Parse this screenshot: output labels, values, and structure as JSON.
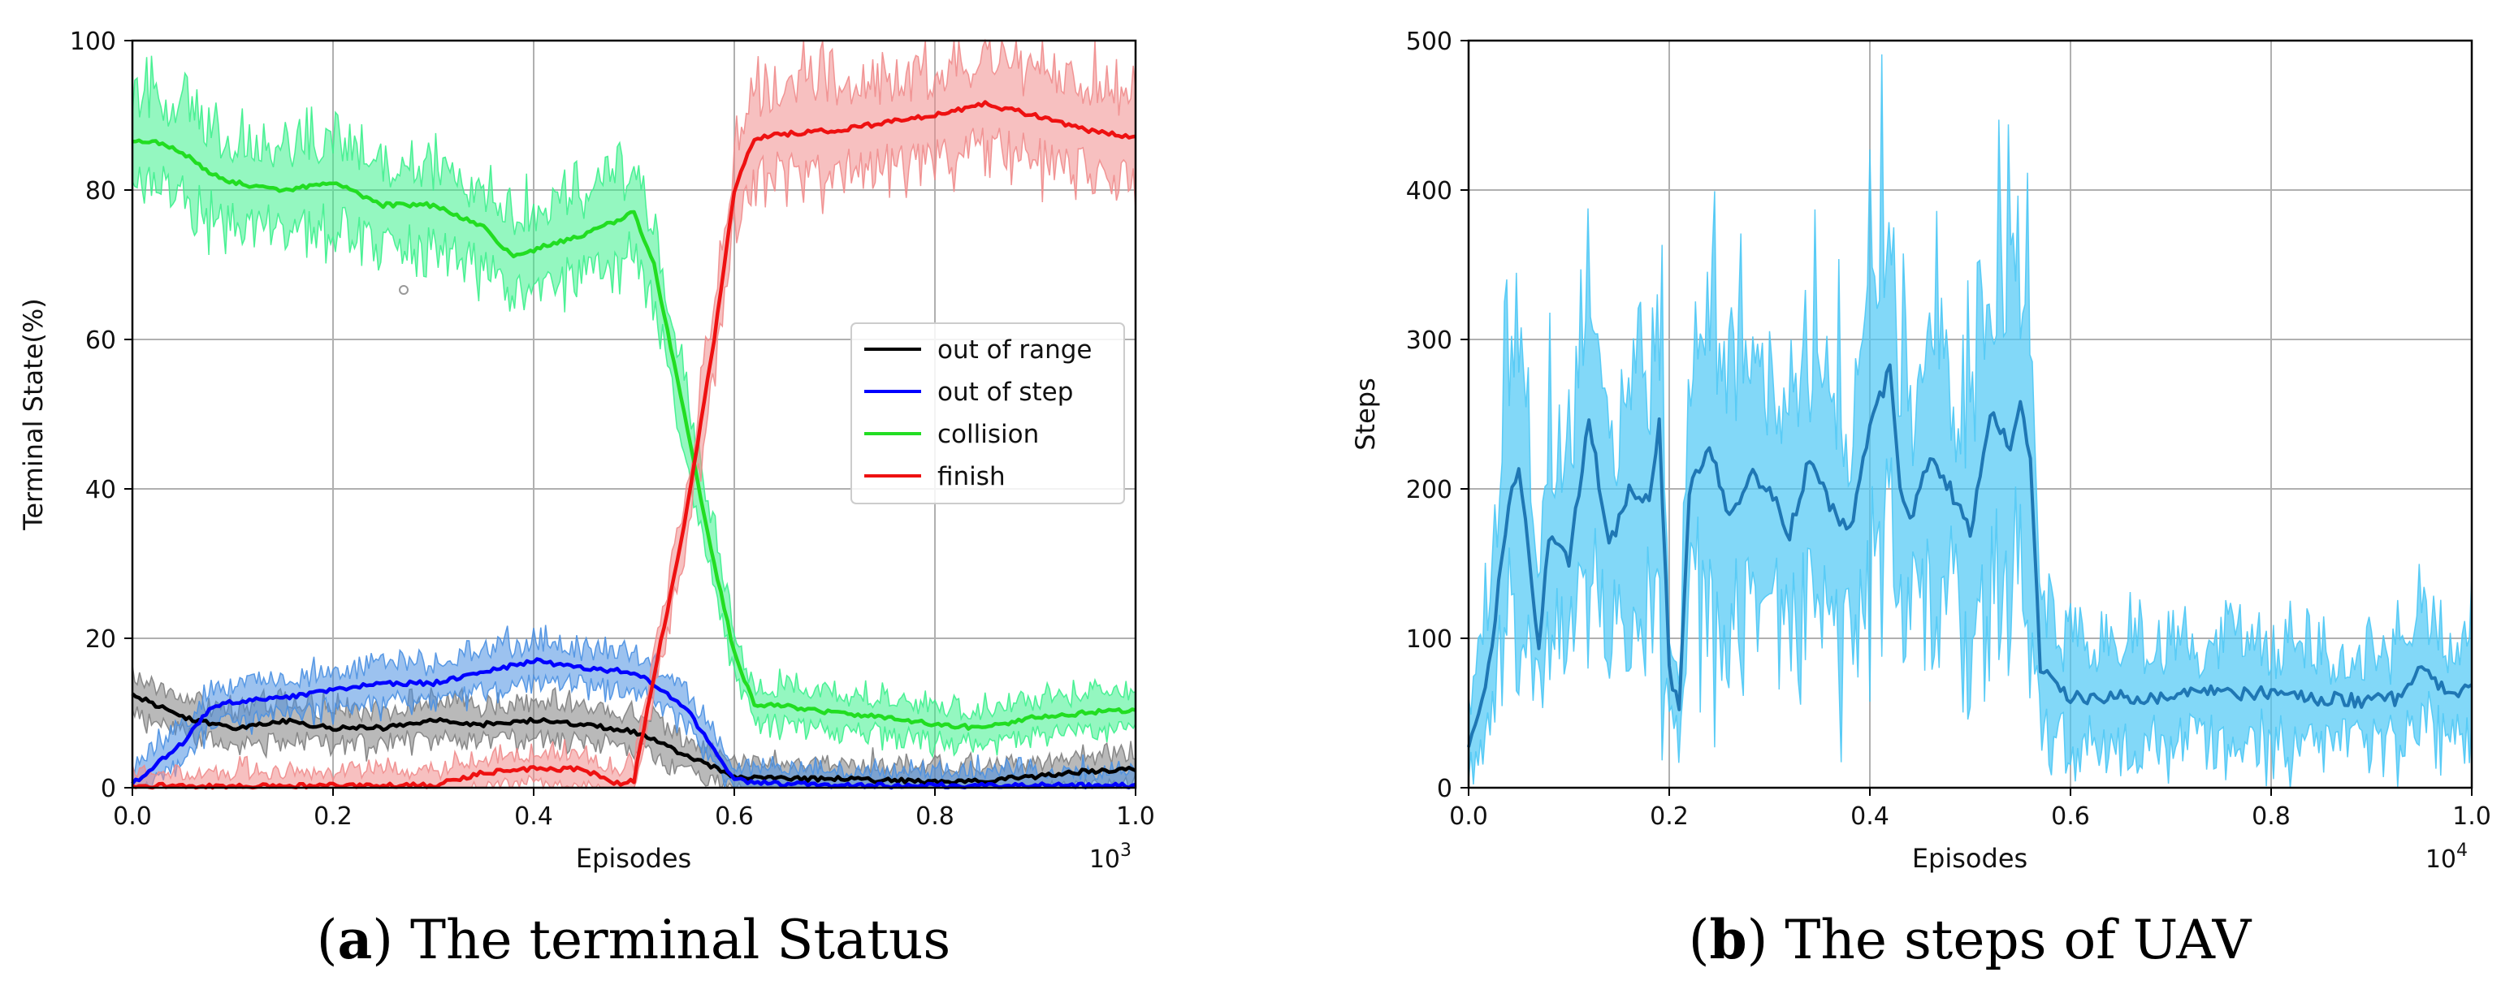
{
  "chart_data": [
    {
      "type": "line",
      "id": "a",
      "xlabel": "Episodes",
      "ylabel": "Terminal State(%)",
      "xlim": [
        0.0,
        1.0
      ],
      "ylim": [
        0,
        100
      ],
      "xticks": [
        0.0,
        0.2,
        0.4,
        0.6,
        0.8,
        1.0
      ],
      "xtick_labels": [
        "0.0",
        "0.2",
        "0.4",
        "0.6",
        "0.8",
        "1.0"
      ],
      "yticks": [
        0,
        20,
        40,
        60,
        80,
        100
      ],
      "ytick_labels": [
        "0",
        "20",
        "40",
        "60",
        "80",
        "100"
      ],
      "x_multiplier": "10",
      "x_multiplier_exp": "3",
      "grid": true,
      "legend_position": "center-right",
      "caption": {
        "letter": "a",
        "text": "The terminal Status"
      },
      "series": [
        {
          "name": "out of range",
          "color": "#000000",
          "band_color": "#808080",
          "x": [
            0.0,
            0.05,
            0.1,
            0.15,
            0.2,
            0.25,
            0.3,
            0.35,
            0.4,
            0.45,
            0.5,
            0.55,
            0.6,
            0.65,
            0.7,
            0.75,
            0.8,
            0.85,
            0.9,
            0.95,
            1.0
          ],
          "values": [
            12.5,
            9.5,
            8,
            9,
            8,
            8,
            9,
            8.5,
            9,
            8.5,
            7.5,
            4.5,
            1.5,
            1.2,
            1.2,
            1,
            0.8,
            1,
            1.5,
            2.2,
            2.5
          ]
        },
        {
          "name": "out of step",
          "color": "#0000ff",
          "band_color": "#4a90e2",
          "x": [
            0.0,
            0.05,
            0.08,
            0.1,
            0.15,
            0.2,
            0.25,
            0.3,
            0.35,
            0.4,
            0.45,
            0.5,
            0.55,
            0.58,
            0.6,
            0.65,
            0.7,
            0.8,
            0.9,
            1.0
          ],
          "values": [
            0.5,
            6,
            11,
            11.5,
            12,
            13,
            14,
            14,
            15.5,
            17,
            16,
            15.5,
            11,
            5,
            1,
            0.5,
            0.3,
            0.3,
            0.3,
            0.3
          ]
        },
        {
          "name": "collision",
          "color": "#22dd22",
          "band_color": "#3cf08c",
          "x": [
            0.0,
            0.02,
            0.05,
            0.08,
            0.1,
            0.15,
            0.2,
            0.25,
            0.3,
            0.35,
            0.38,
            0.4,
            0.45,
            0.5,
            0.52,
            0.55,
            0.58,
            0.6,
            0.62,
            0.65,
            0.7,
            0.75,
            0.8,
            0.85,
            0.9,
            0.95,
            1.0
          ],
          "values": [
            86.5,
            86.5,
            85,
            82,
            81,
            80,
            81,
            78,
            78,
            75,
            71,
            72,
            74,
            77,
            70,
            50,
            30,
            18,
            11,
            11,
            10,
            9.5,
            8.5,
            8,
            9.5,
            10,
            10.5
          ]
        },
        {
          "name": "finish",
          "color": "#ee1111",
          "band_color": "#f08c8c",
          "x": [
            0.0,
            0.1,
            0.2,
            0.3,
            0.35,
            0.4,
            0.45,
            0.48,
            0.5,
            0.52,
            0.55,
            0.58,
            0.6,
            0.62,
            0.65,
            0.7,
            0.75,
            0.8,
            0.85,
            0.9,
            0.95,
            1.0
          ],
          "values": [
            0.3,
            0.2,
            0.3,
            0.3,
            2,
            2.5,
            2.5,
            0.5,
            1,
            15,
            35,
            60,
            80,
            87,
            87.5,
            88,
            89,
            90,
            91.5,
            90,
            88,
            87
          ]
        }
      ]
    },
    {
      "type": "line",
      "id": "b",
      "xlabel": "Episodes",
      "ylabel": "Steps",
      "xlim": [
        0.0,
        1.0
      ],
      "ylim": [
        0,
        500
      ],
      "xticks": [
        0.0,
        0.2,
        0.4,
        0.6,
        0.8,
        1.0
      ],
      "xtick_labels": [
        "0.0",
        "0.2",
        "0.4",
        "0.6",
        "0.8",
        "1.0"
      ],
      "yticks": [
        0,
        100,
        200,
        300,
        400,
        500
      ],
      "ytick_labels": [
        "0",
        "100",
        "200",
        "300",
        "400",
        "500"
      ],
      "x_multiplier": "10",
      "x_multiplier_exp": "4",
      "grid": true,
      "caption": {
        "letter": "b",
        "text": "The steps of UAV"
      },
      "series": [
        {
          "name": "steps",
          "color": "#1f77b4",
          "band_color": "#4dc8f5",
          "x": [
            0.0,
            0.02,
            0.04,
            0.05,
            0.07,
            0.08,
            0.1,
            0.12,
            0.14,
            0.16,
            0.18,
            0.19,
            0.2,
            0.21,
            0.22,
            0.24,
            0.26,
            0.28,
            0.3,
            0.32,
            0.34,
            0.36,
            0.38,
            0.4,
            0.42,
            0.43,
            0.44,
            0.46,
            0.48,
            0.5,
            0.52,
            0.54,
            0.55,
            0.56,
            0.57,
            0.6,
            0.65,
            0.7,
            0.75,
            0.8,
            0.85,
            0.9,
            0.93,
            0.95,
            0.98,
            1.0
          ],
          "values": [
            25,
            80,
            190,
            215,
            95,
            170,
            150,
            250,
            160,
            200,
            190,
            245,
            80,
            50,
            200,
            230,
            180,
            210,
            200,
            170,
            220,
            190,
            170,
            240,
            280,
            200,
            180,
            220,
            200,
            170,
            250,
            230,
            260,
            220,
            80,
            60,
            60,
            60,
            65,
            62,
            60,
            58,
            60,
            80,
            60,
            70
          ]
        }
      ]
    }
  ]
}
